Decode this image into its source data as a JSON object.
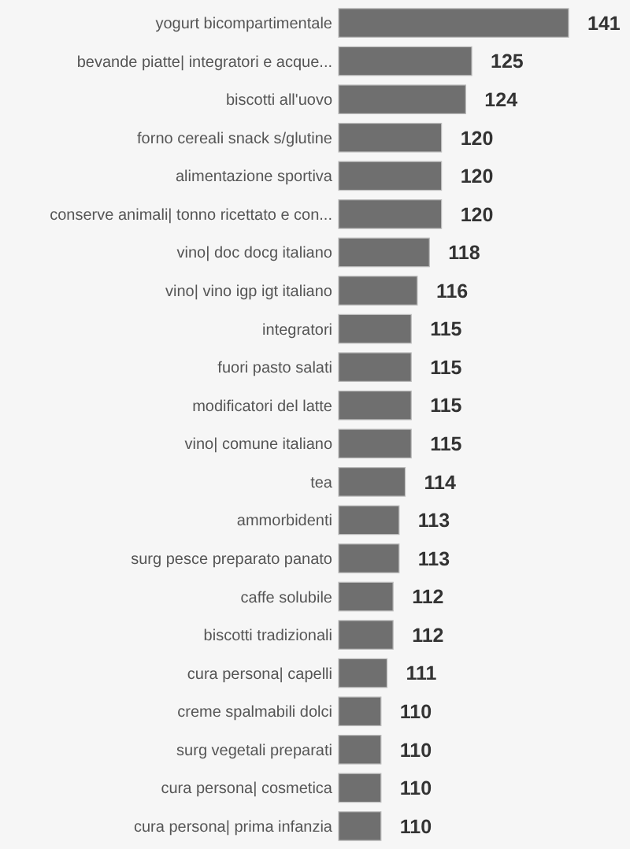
{
  "chart_data": {
    "type": "bar",
    "orientation": "horizontal",
    "data_labels": true,
    "tick_labels": "y",
    "categories": [
      "yogurt bicompartimentale",
      "bevande piatte| integratori e acque...",
      "biscotti all'uovo",
      "forno cereali snack s/glutine",
      "alimentazione sportiva",
      "conserve animali| tonno ricettato e con...",
      "vino| doc docg italiano",
      "vino| vino igp igt italiano",
      "integratori",
      "fuori pasto salati",
      "modificatori del latte",
      "vino| comune italiano",
      "tea",
      "ammorbidenti",
      "surg pesce preparato panato",
      "caffe solubile",
      "biscotti tradizionali",
      "cura persona| capelli",
      "creme spalmabili dolci",
      "surg vegetali preparati",
      "cura persona| cosmetica",
      "cura persona| prima infanzia"
    ],
    "values": [
      141,
      125,
      124,
      120,
      120,
      120,
      118,
      116,
      115,
      115,
      115,
      115,
      114,
      113,
      113,
      112,
      112,
      111,
      110,
      110,
      110,
      110
    ],
    "color": "#6f6f6f",
    "xlim": [
      103,
      141
    ]
  }
}
